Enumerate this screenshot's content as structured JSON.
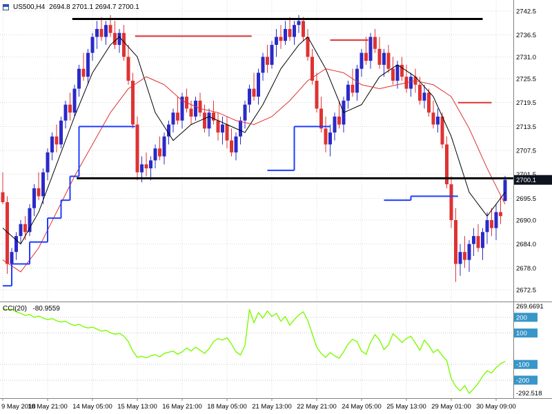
{
  "window": {
    "title": "US500,H4",
    "ohlc": "2694.8 2701.1 2694.7 2700.1"
  },
  "colors": {
    "bull": "#2A2AC8",
    "bear": "#DE3333",
    "ma_fast": "#000000",
    "ma_slow": "#E03030",
    "support": "#1E3CFF",
    "resistance": "#E03030",
    "cci": "#7CFC00",
    "level_badge": "#3896C8",
    "price_badge_bg": "#0E1320",
    "grid": "#D8D8D8",
    "axis": "#808080"
  },
  "price_scale": {
    "current": "2700.1",
    "ticks": [
      2742.5,
      2736.5,
      2731.0,
      2725.5,
      2719.5,
      2713.5,
      2707.5,
      2701.5,
      2695.5,
      2690.0,
      2684.0,
      2678.0,
      2672.5
    ]
  },
  "indicator": {
    "label": "CCI(20)",
    "value": "-80.9559",
    "max_label": "269.6691",
    "min_label": "-292.518"
  },
  "chart_data": {
    "type": "candlestick",
    "symbol": "US500",
    "timeframe": "H4",
    "time_ticks": [
      {
        "bar": 0,
        "label": "9 May 2018"
      },
      {
        "bar": 10,
        "label": "10 May 21:00"
      },
      {
        "bar": 20,
        "label": "14 May 05:00"
      },
      {
        "bar": 30,
        "label": "15 May 13:00"
      },
      {
        "bar": 40,
        "label": "16 May 21:00"
      },
      {
        "bar": 50,
        "label": "18 May 05:00"
      },
      {
        "bar": 60,
        "label": "21 May 13:00"
      },
      {
        "bar": 70,
        "label": "22 May 21:00"
      },
      {
        "bar": 80,
        "label": "24 May 05:00"
      },
      {
        "bar": 90,
        "label": "25 May 13:00"
      },
      {
        "bar": 100,
        "label": "29 May 01:00"
      },
      {
        "bar": 110,
        "label": "30 May 09:00"
      }
    ],
    "candles": [
      [
        2697,
        2702,
        2694,
        2694.5
      ],
      [
        2694.5,
        2696,
        2676.5,
        2679
      ],
      [
        2679,
        2683,
        2676,
        2682
      ],
      [
        2682,
        2687,
        2680,
        2686
      ],
      [
        2686,
        2690,
        2684,
        2689
      ],
      [
        2689,
        2691,
        2685,
        2687
      ],
      [
        2687,
        2694,
        2686,
        2693
      ],
      [
        2693,
        2699,
        2691,
        2698
      ],
      [
        2698,
        2702,
        2695,
        2696
      ],
      [
        2696,
        2703,
        2694,
        2702
      ],
      [
        2702,
        2708,
        2700,
        2707
      ],
      [
        2707,
        2712,
        2705,
        2711
      ],
      [
        2711,
        2714,
        2707,
        2709
      ],
      [
        2709,
        2716,
        2708,
        2715
      ],
      [
        2715,
        2720,
        2713,
        2719
      ],
      [
        2719,
        2722,
        2715,
        2717
      ],
      [
        2717,
        2724,
        2716,
        2723
      ],
      [
        2723,
        2729,
        2721,
        2728
      ],
      [
        2728,
        2732,
        2725,
        2726
      ],
      [
        2726,
        2733,
        2724,
        2732
      ],
      [
        2732,
        2737,
        2730,
        2736
      ],
      [
        2736,
        2740,
        2733,
        2738
      ],
      [
        2738,
        2741,
        2735,
        2736
      ],
      [
        2736,
        2740,
        2734,
        2739
      ],
      [
        2739,
        2741.5,
        2736,
        2737
      ],
      [
        2737,
        2740,
        2733,
        2734
      ],
      [
        2734,
        2738,
        2732,
        2737
      ],
      [
        2737,
        2739,
        2730,
        2731
      ],
      [
        2731,
        2734,
        2724,
        2725
      ],
      [
        2725,
        2727,
        2713,
        2714
      ],
      [
        2714,
        2716,
        2700,
        2702
      ],
      [
        2702,
        2706,
        2699.5,
        2704
      ],
      [
        2704,
        2707,
        2701,
        2703
      ],
      [
        2703,
        2706,
        2700,
        2705
      ],
      [
        2705,
        2709,
        2703,
        2708
      ],
      [
        2708,
        2711,
        2705,
        2706
      ],
      [
        2706,
        2712,
        2704,
        2711
      ],
      [
        2711,
        2715,
        2709,
        2714
      ],
      [
        2714,
        2718,
        2712,
        2717
      ],
      [
        2717,
        2721,
        2714,
        2715
      ],
      [
        2715,
        2722,
        2713,
        2721
      ],
      [
        2721,
        2723,
        2717,
        2718
      ],
      [
        2718,
        2720,
        2714,
        2716
      ],
      [
        2716,
        2721,
        2715,
        2720
      ],
      [
        2720,
        2722,
        2716,
        2717
      ],
      [
        2717,
        2719,
        2712,
        2713
      ],
      [
        2713,
        2718,
        2711,
        2717
      ],
      [
        2717,
        2720,
        2714,
        2715
      ],
      [
        2715,
        2717,
        2710,
        2712
      ],
      [
        2712,
        2716,
        2709,
        2714
      ],
      [
        2714,
        2716,
        2708,
        2710
      ],
      [
        2710,
        2713,
        2706,
        2707
      ],
      [
        2707,
        2712,
        2705,
        2711
      ],
      [
        2711,
        2716,
        2709,
        2715
      ],
      [
        2715,
        2720,
        2713,
        2719
      ],
      [
        2719,
        2724,
        2717,
        2723
      ],
      [
        2723,
        2727,
        2720,
        2721
      ],
      [
        2721,
        2728,
        2719,
        2727
      ],
      [
        2727,
        2732,
        2725,
        2731
      ],
      [
        2731,
        2734,
        2727,
        2729
      ],
      [
        2729,
        2735,
        2728,
        2734
      ],
      [
        2734,
        2738,
        2731,
        2736
      ],
      [
        2736,
        2739,
        2733,
        2735
      ],
      [
        2735,
        2740,
        2734,
        2738
      ],
      [
        2738,
        2741,
        2735,
        2736
      ],
      [
        2736,
        2740,
        2734,
        2739
      ],
      [
        2739,
        2741.5,
        2737,
        2740
      ],
      [
        2740,
        2741,
        2735,
        2736
      ],
      [
        2736,
        2738,
        2730,
        2731
      ],
      [
        2731,
        2733,
        2724,
        2725
      ],
      [
        2725,
        2727,
        2717,
        2718
      ],
      [
        2718,
        2721,
        2712,
        2713
      ],
      [
        2713,
        2716,
        2707,
        2709
      ],
      [
        2709,
        2714,
        2706,
        2712
      ],
      [
        2712,
        2717,
        2710,
        2716
      ],
      [
        2716,
        2720,
        2713,
        2714
      ],
      [
        2714,
        2721,
        2712,
        2720
      ],
      [
        2720,
        2725,
        2718,
        2724
      ],
      [
        2724,
        2728,
        2721,
        2722
      ],
      [
        2722,
        2729,
        2720,
        2728
      ],
      [
        2728,
        2733,
        2726,
        2732
      ],
      [
        2732,
        2736,
        2729,
        2730
      ],
      [
        2730,
        2737,
        2728,
        2736
      ],
      [
        2736,
        2738,
        2732,
        2733
      ],
      [
        2733,
        2736,
        2728,
        2729
      ],
      [
        2729,
        2733,
        2726,
        2732
      ],
      [
        2732,
        2734,
        2727,
        2728
      ],
      [
        2728,
        2731,
        2724,
        2725
      ],
      [
        2725,
        2730,
        2723,
        2729
      ],
      [
        2729,
        2731,
        2725,
        2726
      ],
      [
        2726,
        2729,
        2722,
        2723
      ],
      [
        2723,
        2727,
        2721,
        2726
      ],
      [
        2726,
        2728,
        2722,
        2724
      ],
      [
        2724,
        2726,
        2719,
        2720
      ],
      [
        2720,
        2724,
        2718,
        2722
      ],
      [
        2722,
        2723,
        2716,
        2717
      ],
      [
        2717,
        2720,
        2713,
        2714
      ],
      [
        2714,
        2718,
        2712,
        2716
      ],
      [
        2716,
        2717,
        2708,
        2709
      ],
      [
        2709,
        2711,
        2698,
        2699
      ],
      [
        2699,
        2701,
        2688,
        2690
      ],
      [
        2690,
        2693,
        2674.5,
        2679
      ],
      [
        2679,
        2684,
        2676,
        2682
      ],
      [
        2682,
        2686,
        2678,
        2680
      ],
      [
        2680,
        2685,
        2677,
        2684
      ],
      [
        2684,
        2688,
        2681,
        2686
      ],
      [
        2686,
        2689,
        2682,
        2683
      ],
      [
        2683,
        2688,
        2680,
        2687
      ],
      [
        2687,
        2692,
        2684,
        2690
      ],
      [
        2690,
        2693,
        2686,
        2688
      ],
      [
        2688,
        2694,
        2685,
        2692
      ],
      [
        2692,
        2696,
        2689,
        2691
      ],
      [
        2694.8,
        2701.1,
        2694.7,
        2700.1
      ]
    ],
    "ma_fast_anchors": [
      [
        0,
        2688
      ],
      [
        4,
        2684
      ],
      [
        8,
        2692
      ],
      [
        12,
        2704
      ],
      [
        16,
        2716
      ],
      [
        20,
        2727
      ],
      [
        24,
        2734
      ],
      [
        26,
        2736
      ],
      [
        30,
        2731
      ],
      [
        34,
        2717
      ],
      [
        38,
        2710
      ],
      [
        42,
        2714
      ],
      [
        46,
        2716
      ],
      [
        50,
        2714
      ],
      [
        54,
        2712
      ],
      [
        58,
        2719
      ],
      [
        62,
        2728
      ],
      [
        66,
        2734
      ],
      [
        68,
        2736
      ],
      [
        72,
        2728
      ],
      [
        76,
        2717
      ],
      [
        80,
        2719
      ],
      [
        84,
        2726
      ],
      [
        88,
        2729
      ],
      [
        92,
        2726
      ],
      [
        96,
        2721
      ],
      [
        100,
        2711
      ],
      [
        104,
        2697
      ],
      [
        108,
        2691
      ],
      [
        112,
        2697
      ]
    ],
    "ma_slow_anchors": [
      [
        0,
        2680
      ],
      [
        4,
        2677
      ],
      [
        8,
        2683
      ],
      [
        12,
        2692
      ],
      [
        16,
        2701
      ],
      [
        20,
        2709
      ],
      [
        24,
        2717
      ],
      [
        28,
        2723
      ],
      [
        32,
        2726
      ],
      [
        36,
        2724
      ],
      [
        40,
        2720
      ],
      [
        44,
        2718
      ],
      [
        48,
        2717
      ],
      [
        52,
        2715
      ],
      [
        56,
        2714
      ],
      [
        60,
        2716
      ],
      [
        64,
        2720
      ],
      [
        68,
        2725
      ],
      [
        72,
        2728
      ],
      [
        76,
        2727
      ],
      [
        80,
        2724
      ],
      [
        84,
        2723
      ],
      [
        88,
        2724
      ],
      [
        92,
        2725
      ],
      [
        96,
        2724
      ],
      [
        100,
        2721
      ],
      [
        104,
        2713
      ],
      [
        108,
        2703
      ],
      [
        112,
        2694
      ]
    ],
    "support_steps": [
      [
        0,
        2,
        2673.5
      ],
      [
        2,
        6,
        2679
      ],
      [
        6,
        10,
        2684.5
      ],
      [
        10,
        13,
        2690.5
      ],
      [
        13,
        15,
        2695
      ],
      [
        15,
        17,
        2701
      ],
      [
        17,
        29.5,
        2713.5
      ],
      [
        59,
        65,
        2702.5
      ],
      [
        65,
        73,
        2713.5
      ],
      [
        85,
        91,
        2695
      ],
      [
        91,
        101.5,
        2696
      ]
    ],
    "resistance_segments": [
      [
        29.5,
        55.5,
        2736.2
      ],
      [
        73,
        81.5,
        2735.2
      ],
      [
        101.5,
        109,
        2719.5
      ]
    ],
    "hlines": [
      {
        "price": 2740.5,
        "from_bar": 15.5,
        "to_bar": 107
      },
      {
        "price": 2700.5,
        "from_bar": 16.5,
        "to_bar": 116
      }
    ],
    "cci": {
      "period": 20,
      "range_max": 269.6691,
      "range_min": -292.518,
      "levels": [
        200,
        100,
        -100,
        -200
      ],
      "values": [
        255,
        248,
        252,
        235,
        225,
        212,
        218,
        200,
        208,
        195,
        185,
        192,
        178,
        170,
        175,
        158,
        148,
        155,
        140,
        132,
        138,
        125,
        112,
        118,
        102,
        92,
        98,
        80,
        45,
        -15,
        -55,
        -48,
        -58,
        -45,
        -38,
        -52,
        -30,
        -22,
        -15,
        -35,
        -20,
        5,
        -15,
        10,
        -10,
        -30,
        0,
        45,
        65,
        55,
        70,
        30,
        -20,
        -40,
        20,
        250,
        165,
        230,
        195,
        240,
        205,
        225,
        175,
        205,
        150,
        185,
        215,
        235,
        180,
        95,
        10,
        -30,
        -55,
        -25,
        -45,
        -60,
        -20,
        30,
        60,
        45,
        -15,
        -35,
        40,
        90,
        55,
        -5,
        25,
        95,
        70,
        40,
        65,
        80,
        35,
        -10,
        55,
        20,
        -25,
        -5,
        -45,
        -75,
        -190,
        -240,
        -268,
        -235,
        -285,
        -255,
        -220,
        -175,
        -140,
        -155,
        -120,
        -95,
        -80.96
      ]
    }
  }
}
